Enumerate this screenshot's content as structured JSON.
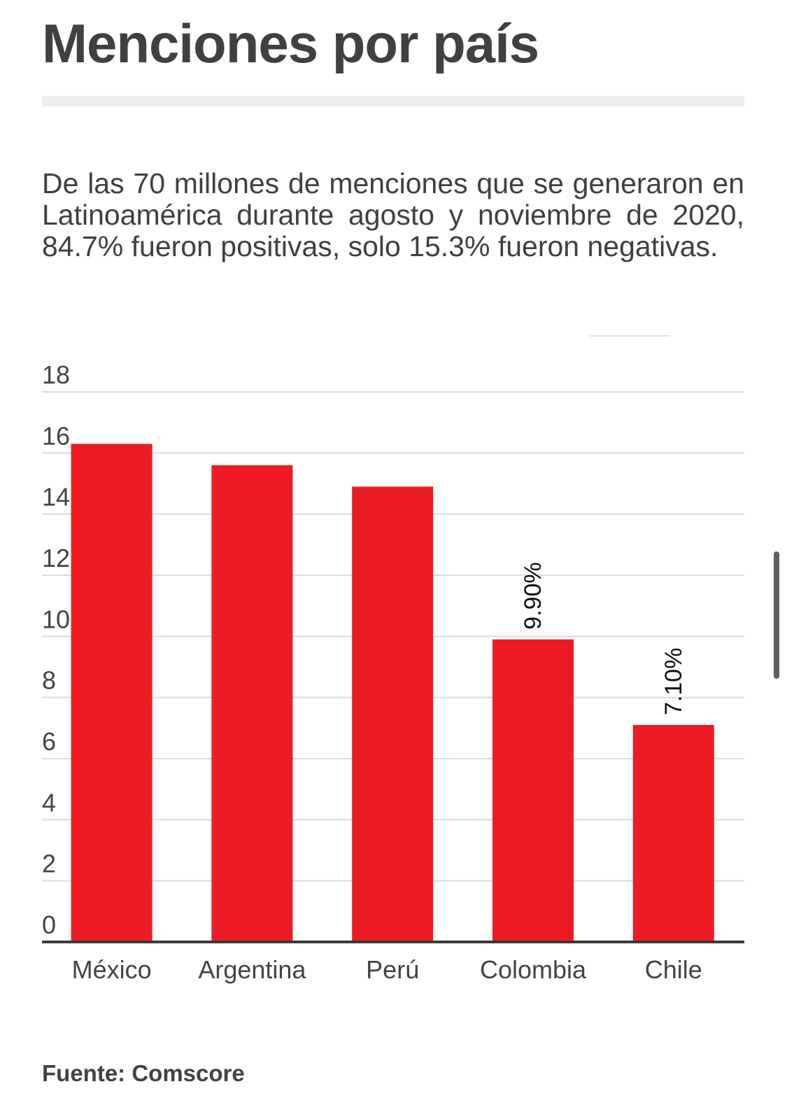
{
  "title": "Menciones por país",
  "description": "De las 70 millones de menciones que se generaron en Latinoamérica durante agosto y noviembre de 2020, 84.7% fueron positivas, solo 15.3% fueron negativas.",
  "source": "Fuente: Comscore",
  "chart_data": {
    "type": "bar",
    "title": "",
    "xlabel": "",
    "ylabel": "",
    "categories": [
      "México",
      "Argentina",
      "Perú",
      "Colombia",
      "Chile"
    ],
    "values": [
      16.3,
      15.6,
      14.9,
      9.9,
      7.1
    ],
    "data_labels": [
      "",
      "",
      "",
      "9.90%",
      "7.10%"
    ],
    "yticks": [
      0,
      2,
      4,
      6,
      8,
      10,
      12,
      14,
      16,
      18
    ],
    "ylim": [
      0,
      18
    ],
    "grid": true,
    "bar_color": "#ed1c24"
  }
}
